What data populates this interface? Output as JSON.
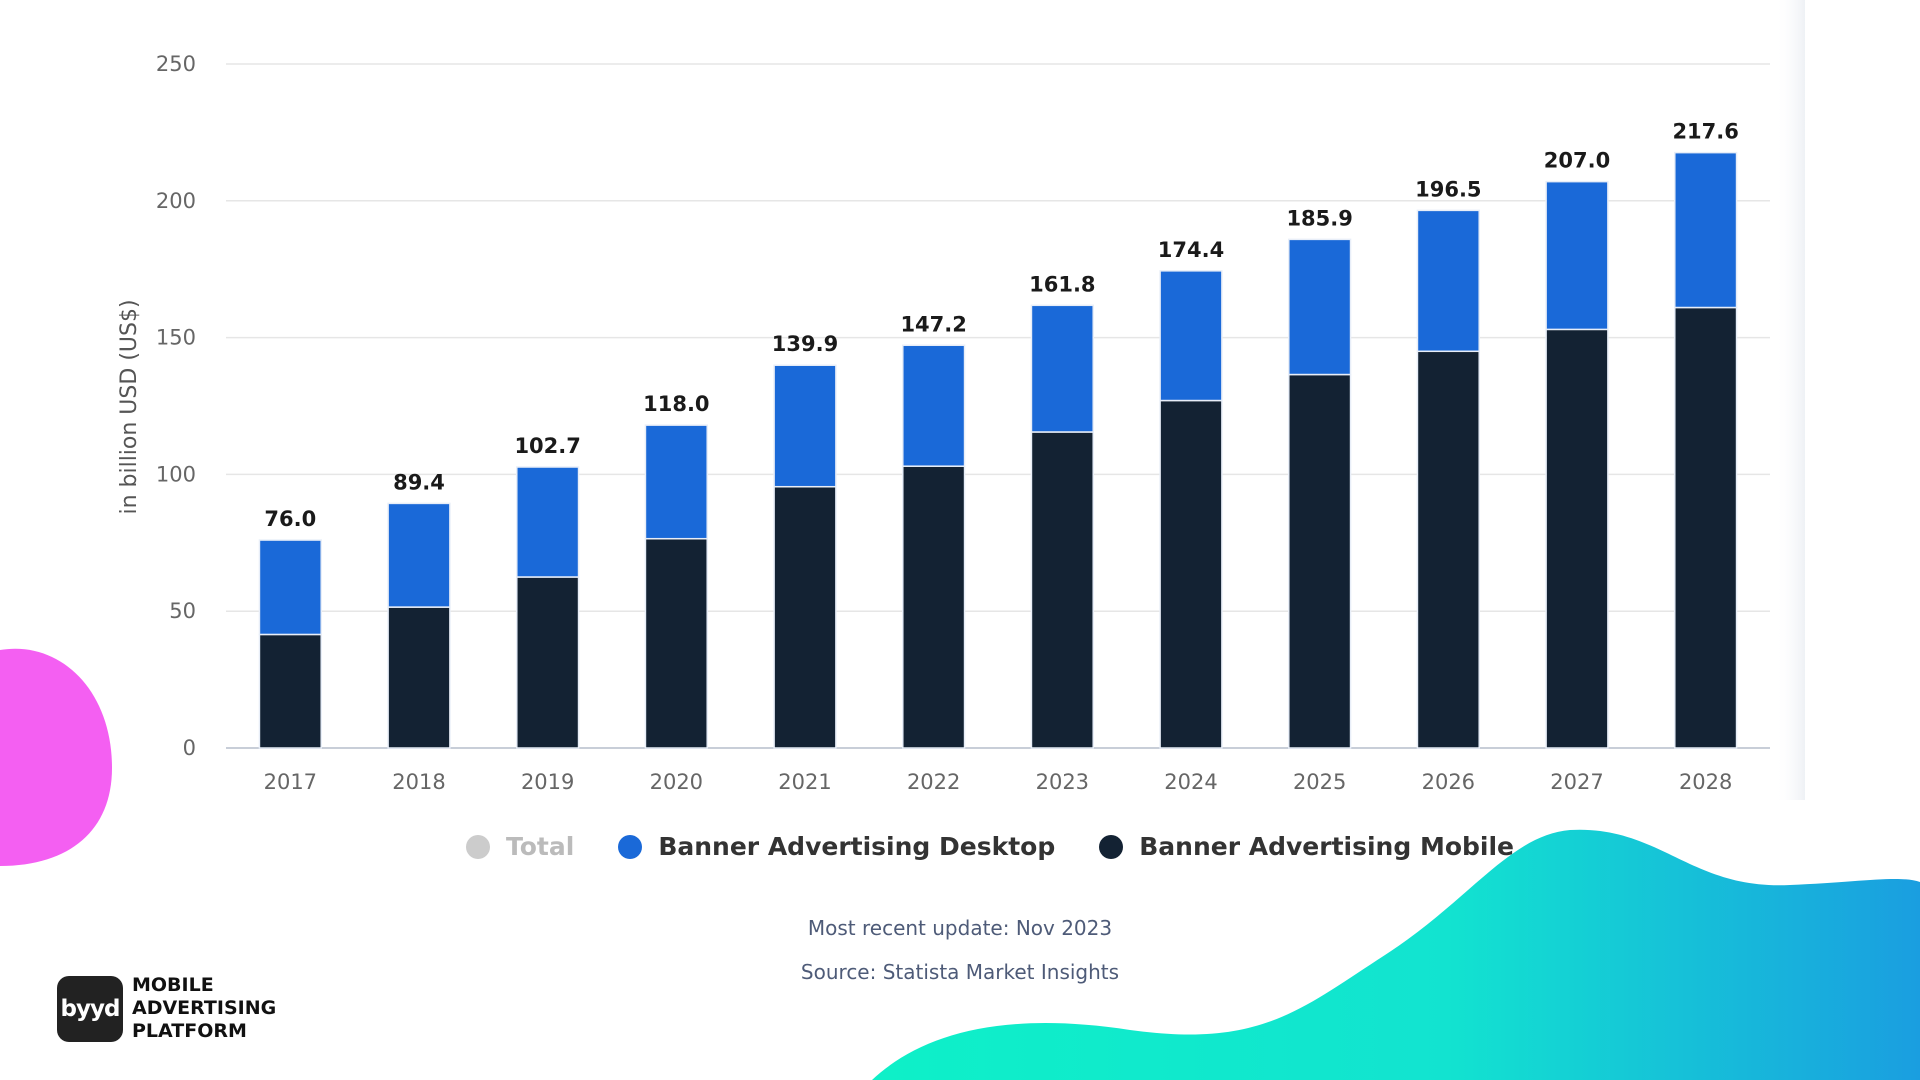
{
  "chart_data": {
    "type": "bar",
    "stacked": true,
    "categories": [
      "2017",
      "2018",
      "2019",
      "2020",
      "2021",
      "2022",
      "2023",
      "2024",
      "2025",
      "2026",
      "2027",
      "2028"
    ],
    "series": [
      {
        "name": "Banner Advertising Mobile",
        "color": "#132233",
        "values": [
          41.5,
          51.5,
          62.5,
          76.5,
          95.5,
          103,
          115.5,
          127,
          136.5,
          145,
          153,
          161
        ]
      },
      {
        "name": "Banner Advertising Desktop",
        "color": "#1a69d8",
        "values": [
          34.5,
          37.9,
          40.2,
          41.5,
          44.4,
          44.2,
          46.3,
          47.4,
          49.4,
          51.5,
          54.0,
          56.6
        ]
      }
    ],
    "totals": [
      "76.0",
      "89.4",
      "102.7",
      "118.0",
      "139.9",
      "147.2",
      "161.8",
      "174.4",
      "185.9",
      "196.5",
      "207.0",
      "217.6"
    ],
    "ylabel": "in billion USD (US$)",
    "yticks": [
      0,
      50,
      100,
      150,
      200,
      250
    ],
    "ylim": [
      0,
      250
    ],
    "grid": true,
    "legend_position": "bottom",
    "legend": [
      {
        "name": "Total",
        "color": "#cccccc"
      },
      {
        "name": "Banner Advertising Desktop",
        "color": "#1a69d8"
      },
      {
        "name": "Banner Advertising Mobile",
        "color": "#132233"
      }
    ]
  },
  "footer": {
    "update": "Most recent update: Nov 2023",
    "source": "Source: Statista Market Insights"
  },
  "brand": {
    "logo_text": "byyd",
    "line1": "MOBILE",
    "line2": "ADVERTISING",
    "line3": "PLATFORM"
  },
  "colors": {
    "pink_blob": "#f25cf3",
    "wave_start": "#0ef0c8",
    "wave_end": "#1a9fe0"
  }
}
